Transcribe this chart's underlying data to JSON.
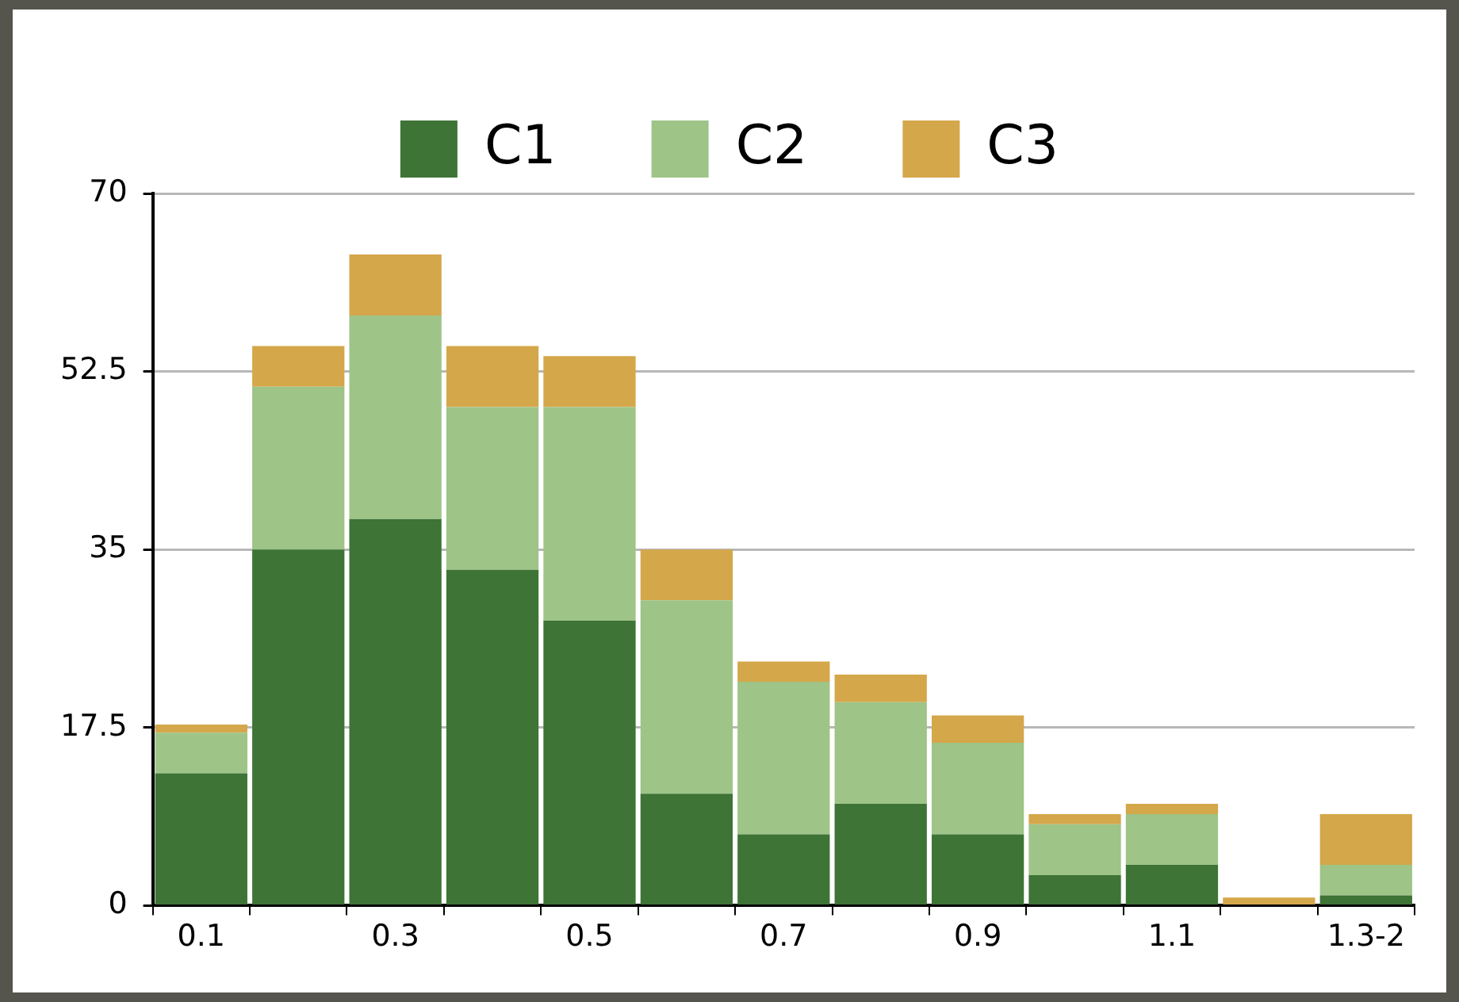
{
  "chart_data": {
    "type": "bar",
    "stacked": true,
    "categories": [
      "0.1",
      null,
      "0.3",
      null,
      "0.5",
      null,
      "0.7",
      null,
      "0.9",
      null,
      "1.1",
      null,
      "1.3-2"
    ],
    "series": [
      {
        "name": "C1",
        "color": "#3e7436",
        "values": [
          13,
          35,
          38,
          33,
          28,
          11,
          7,
          10,
          7,
          3,
          4,
          0,
          1
        ]
      },
      {
        "name": "C2",
        "color": "#9ec487",
        "values": [
          4,
          16,
          20,
          16,
          21,
          19,
          15,
          10,
          9,
          5,
          5,
          0,
          3
        ]
      },
      {
        "name": "C3",
        "color": "#d4a74a",
        "values": [
          0.8,
          4,
          6,
          6,
          5,
          5,
          2,
          2.7,
          2.7,
          1,
          1,
          0.8,
          5
        ]
      }
    ],
    "ylim": [
      0,
      70
    ],
    "yticks": [
      0,
      17.5,
      35,
      52.5,
      70
    ],
    "grid": "y",
    "legend": "top"
  }
}
